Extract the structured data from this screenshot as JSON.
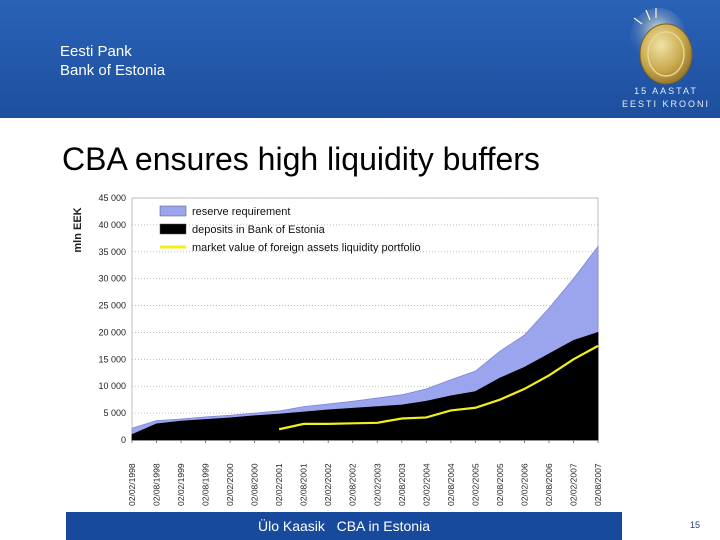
{
  "header": {
    "bank_line1": "Eesti Pank",
    "bank_line2": "Bank of Estonia",
    "emblem_line1": "15 AASTAT",
    "emblem_line2": "EESTI KROONI"
  },
  "slide": {
    "title": "CBA ensures high liquidity buffers"
  },
  "footer": {
    "author": "Ülo Kaasik",
    "topic": "CBA in Estonia",
    "page": "15"
  },
  "colors": {
    "reserve": "#9aa5ee",
    "deposits": "#000000",
    "market": "#f5ef18",
    "header_blue": "#1d4f9e"
  },
  "chart_data": {
    "type": "area",
    "title": "",
    "ylabel": "mln EEK",
    "xlabel": "",
    "ylim": [
      0,
      45000
    ],
    "yticks": [
      0,
      5000,
      10000,
      15000,
      20000,
      25000,
      30000,
      35000,
      40000,
      45000
    ],
    "ytick_labels": [
      "0",
      "5 000",
      "10 000",
      "15 000",
      "20 000",
      "25 000",
      "30 000",
      "35 000",
      "40 000",
      "45 000"
    ],
    "grid": "horizontal dotted",
    "legend_position": "top-left",
    "x": [
      "02/02/1998",
      "02/08/1998",
      "02/02/1999",
      "02/08/1999",
      "02/02/2000",
      "02/08/2000",
      "02/02/2001",
      "02/08/2001",
      "02/02/2002",
      "02/08/2002",
      "02/02/2003",
      "02/08/2003",
      "02/02/2004",
      "02/08/2004",
      "02/02/2005",
      "02/08/2005",
      "02/02/2006",
      "02/08/2006",
      "02/02/2007",
      "02/08/2007"
    ],
    "series": [
      {
        "name": "reserve requirement",
        "kind": "area",
        "values": [
          2200,
          3600,
          3900,
          4300,
          4600,
          5000,
          5400,
          6200,
          6700,
          7200,
          7800,
          8400,
          9500,
          11200,
          12800,
          16500,
          19500,
          24500,
          30000,
          36000
        ]
      },
      {
        "name": "deposits in Bank of Estonia",
        "kind": "area",
        "values": [
          1000,
          3000,
          3500,
          3800,
          4100,
          4500,
          4800,
          5200,
          5600,
          5900,
          6200,
          6500,
          7200,
          8200,
          9000,
          11500,
          13500,
          16000,
          18500,
          20000
        ]
      },
      {
        "name": "market value of foreign assets liquidity portfolio",
        "kind": "line",
        "values": [
          null,
          null,
          null,
          null,
          null,
          null,
          2000,
          3000,
          3000,
          3100,
          3200,
          4000,
          4200,
          5500,
          6000,
          7500,
          9500,
          12000,
          15000,
          17500
        ]
      }
    ]
  }
}
